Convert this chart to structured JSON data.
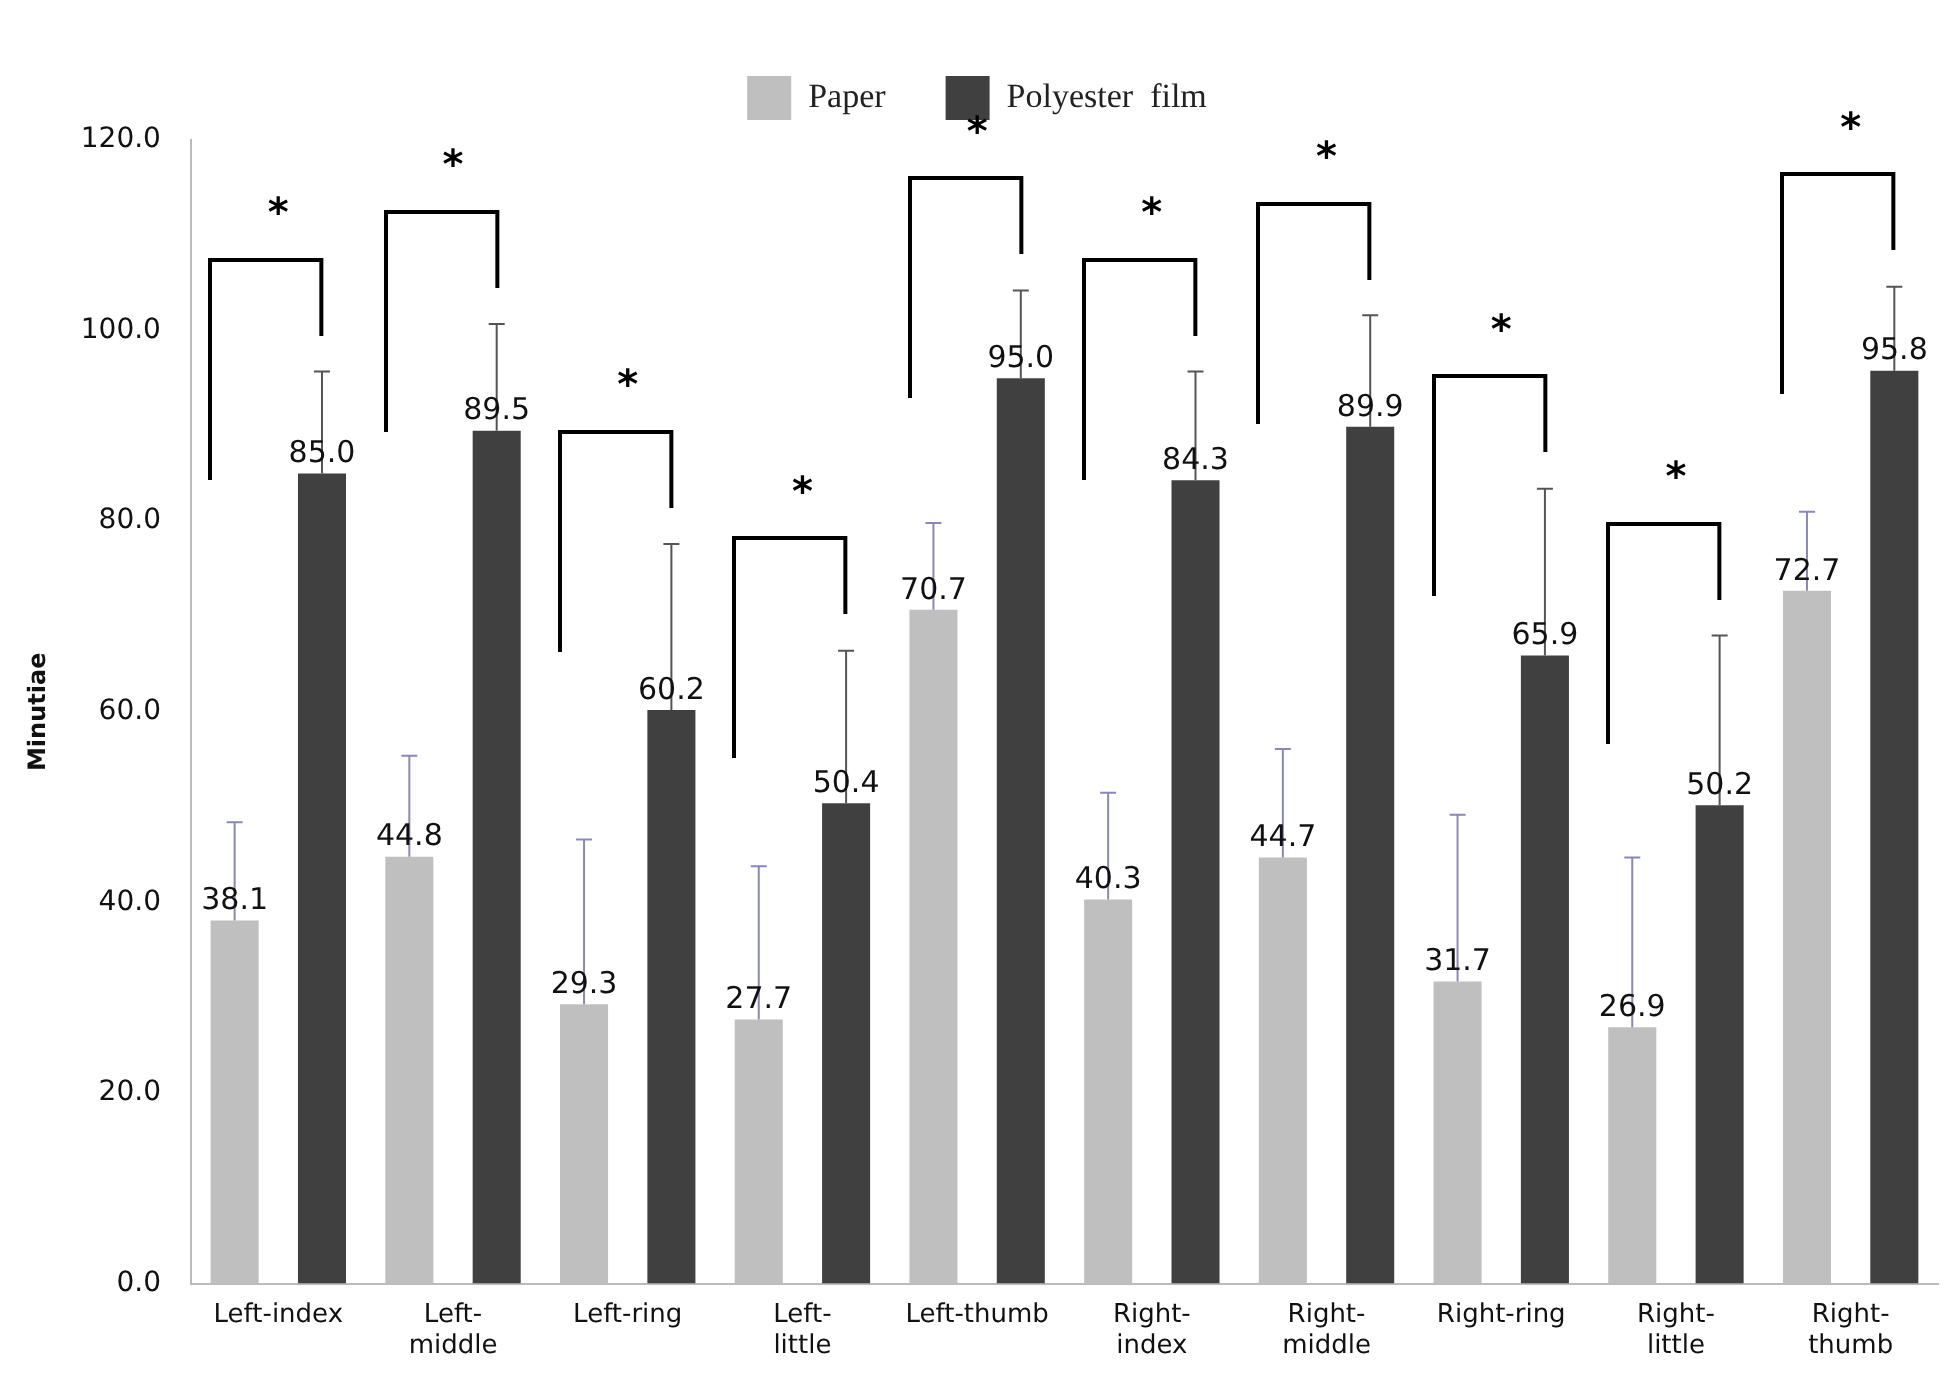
{
  "chart_data": {
    "type": "bar",
    "ylabel": "Minutiae",
    "categories": [
      "Left-index",
      "Left-middle",
      "Left-ring",
      "Left-little",
      "Left-thumb",
      "Right-index",
      "Right-middle",
      "Right-ring",
      "Right-little",
      "Right-thumb"
    ],
    "series": [
      {
        "name": "Paper",
        "color": "#bfbfbf",
        "values": [
          38.1,
          44.8,
          29.3,
          27.7,
          70.7,
          40.3,
          44.7,
          31.7,
          26.9,
          72.7
        ],
        "value_labels": [
          "38.1",
          "44.8",
          "29.3",
          "27.7",
          "70.7",
          "40.3",
          "44.7",
          "31.7",
          "26.9",
          "72.7"
        ],
        "errors": [
          [
            38.1,
            48.4
          ],
          [
            44.8,
            55.4
          ],
          [
            29.3,
            46.6
          ],
          [
            27.7,
            43.8
          ],
          [
            70.7,
            79.8
          ],
          [
            40.3,
            51.5
          ],
          [
            44.7,
            56.1
          ],
          [
            31.7,
            49.2
          ],
          [
            26.9,
            44.7
          ],
          [
            72.7,
            81.0
          ]
        ]
      },
      {
        "name": "Polyester  film",
        "color": "#404040",
        "values": [
          85.0,
          89.5,
          60.2,
          50.4,
          95.0,
          84.3,
          89.9,
          65.9,
          50.2,
          95.8
        ],
        "value_labels": [
          "85.0",
          "89.5",
          "60.2",
          "50.4",
          "95.0",
          "84.3",
          "89.9",
          "65.9",
          "50.2",
          "95.8"
        ],
        "errors": [
          [
            85.0,
            95.7
          ],
          [
            89.5,
            100.7
          ],
          [
            60.2,
            77.6
          ],
          [
            50.4,
            66.4
          ],
          [
            95.0,
            104.2
          ],
          [
            84.3,
            95.7
          ],
          [
            89.9,
            101.6
          ],
          [
            65.9,
            83.4
          ],
          [
            50.2,
            68.0
          ],
          [
            95.8,
            104.6
          ]
        ]
      }
    ],
    "ylim": [
      0,
      120
    ],
    "yticks": [
      {
        "value": 0,
        "label": "0.0"
      },
      {
        "value": 20,
        "label": "20.0"
      },
      {
        "value": 40,
        "label": "40.0"
      },
      {
        "value": 60,
        "label": "60.0"
      },
      {
        "value": 80,
        "label": "80.0"
      },
      {
        "value": 100,
        "label": "100.0"
      },
      {
        "value": 120,
        "label": "120.0"
      }
    ],
    "grid": false,
    "legend": "top",
    "annotations": [
      "*",
      "*",
      "*",
      "*",
      "*",
      "*",
      "*",
      "*",
      "*",
      "*"
    ]
  }
}
